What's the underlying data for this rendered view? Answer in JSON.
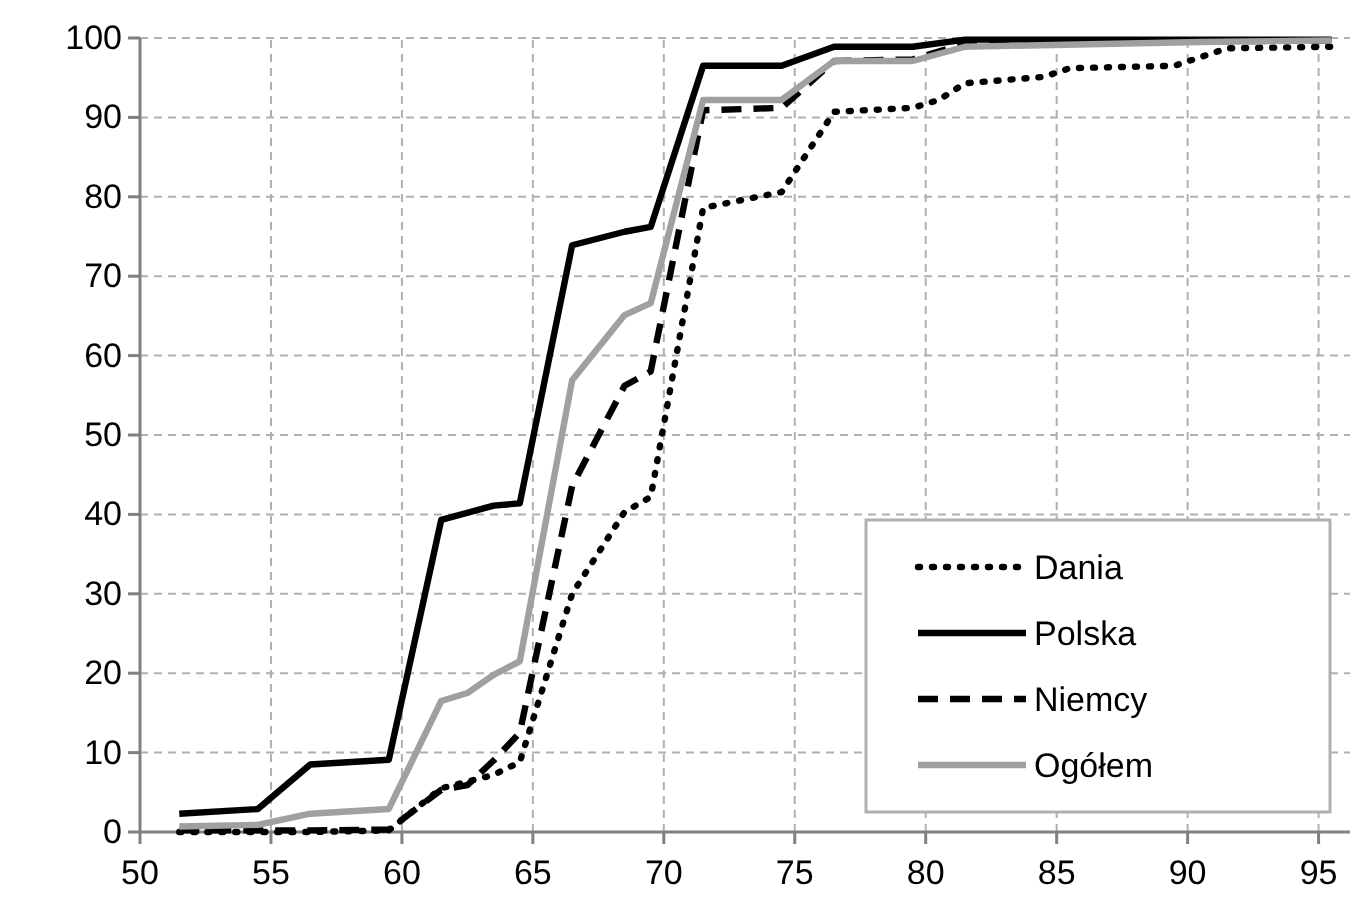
{
  "chart_data": {
    "type": "line",
    "xlim": [
      50,
      96.2
    ],
    "ylim": [
      0,
      100
    ],
    "xticks": [
      50,
      55,
      60,
      65,
      70,
      75,
      80,
      85,
      90,
      95
    ],
    "yticks": [
      0,
      10,
      20,
      30,
      40,
      50,
      60,
      70,
      80,
      90,
      100
    ],
    "grid": true,
    "legend": "bottom right",
    "series": [
      {
        "name": "Dania",
        "color": "#000000",
        "line_style": "dotted",
        "x": [
          51.5,
          54.5,
          56.5,
          59.5,
          61.5,
          63.5,
          64.5,
          66.5,
          68.5,
          69.5,
          71.5,
          74.5,
          76.5,
          79.5,
          80.5,
          81.5,
          84.5,
          85.5,
          89.5,
          91.5,
          95.5
        ],
        "values": [
          0,
          0,
          0,
          0.2,
          5.5,
          7.2,
          8.8,
          30,
          40.3,
          42.2,
          78.6,
          80.6,
          90.7,
          91.2,
          92.2,
          94.3,
          95.1,
          96.2,
          96.5,
          98.7,
          98.9
        ]
      },
      {
        "name": "Polska",
        "color": "#000000",
        "line_style": "solid",
        "x": [
          51.5,
          54.5,
          56.5,
          59.5,
          61.5,
          63.5,
          64.5,
          66.5,
          68.5,
          69.5,
          71.5,
          74.5,
          76.5,
          79.5,
          81.5,
          95.5
        ],
        "values": [
          2.3,
          2.9,
          8.5,
          9.1,
          39.3,
          41.1,
          41.4,
          73.9,
          75.6,
          76.2,
          96.5,
          96.5,
          98.9,
          98.9,
          99.8,
          99.8
        ]
      },
      {
        "name": "Niemcy",
        "color": "#000000",
        "line_style": "dashed",
        "x": [
          51.5,
          54.5,
          56.5,
          59.5,
          61.5,
          62.5,
          63.5,
          64.5,
          66.5,
          68.5,
          69.5,
          71.5,
          74.5,
          76.5,
          79.5,
          81.5,
          95.5
        ],
        "values": [
          0.2,
          0.2,
          0.2,
          0.3,
          5.3,
          5.9,
          9,
          12.5,
          43.6,
          56.2,
          58,
          90.9,
          91.2,
          97.1,
          97.3,
          99.3,
          99.7
        ]
      },
      {
        "name": "Ogółem",
        "color": "#a0a0a0",
        "line_style": "solid",
        "x": [
          51.5,
          54.5,
          56.5,
          59.5,
          61.5,
          62.5,
          63.5,
          64.5,
          66.5,
          68.5,
          69.5,
          71.5,
          74.5,
          76.5,
          79.5,
          81.5,
          90.5,
          95.5
        ],
        "values": [
          0.7,
          0.9,
          2.3,
          2.9,
          16.5,
          17.5,
          19.8,
          21.5,
          56.9,
          65.1,
          66.6,
          92.2,
          92.2,
          97.1,
          97.1,
          98.9,
          99.5,
          99.7
        ]
      }
    ]
  }
}
